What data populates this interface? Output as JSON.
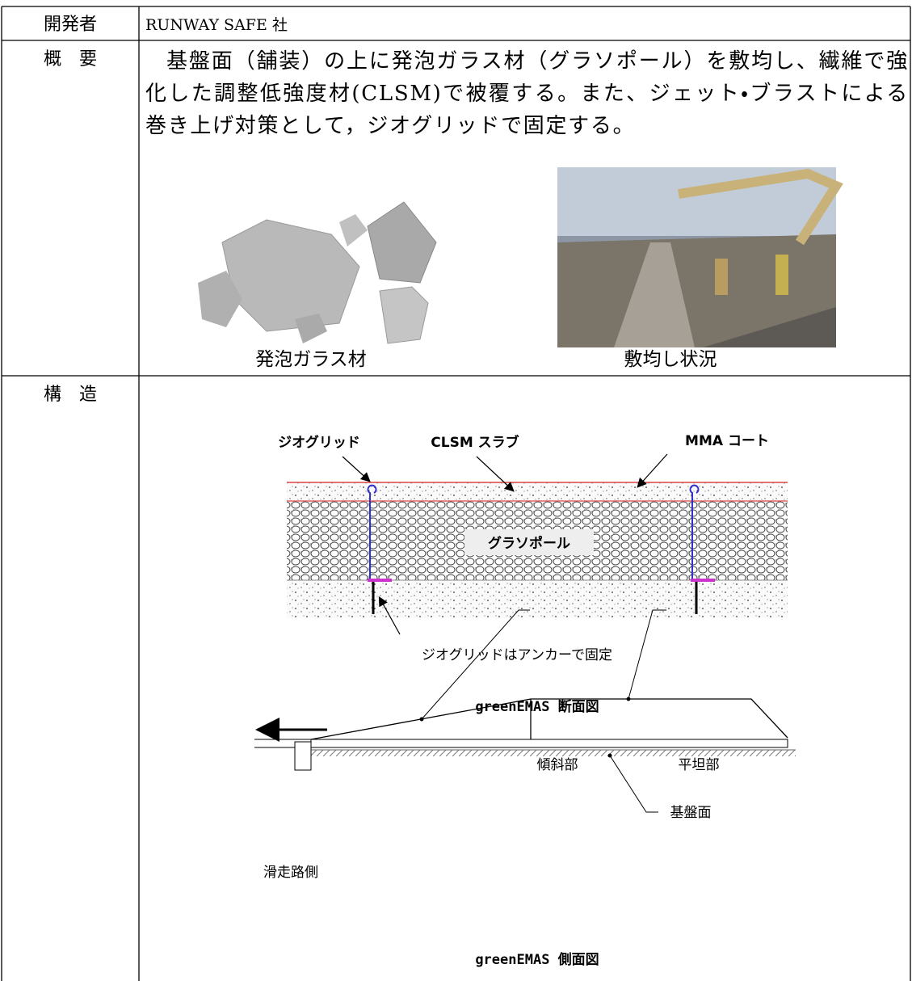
{
  "table": {
    "rows": [
      {
        "label": "開発者",
        "text": "RUNWAY SAFE 社"
      },
      {
        "label": "概　要",
        "text": "基盤面（舗装）の上に発泡ガラス材（グラソポール）を敷均し、繊維で強化した調整低強度材(CLSM)で被覆する。また、ジェット・ブラストによる巻き上げ対策として，ジオグリッドで固定する。",
        "figures": [
          {
            "caption": "発泡ガラス材"
          },
          {
            "caption": "敷均し状況"
          }
        ]
      },
      {
        "label": "構　造",
        "diagrams": [
          {
            "callouts": [
              "ジオグリッド",
              "CLSM スラブ",
              "MMA コート",
              "グラソポール",
              "ジオグリッドはアンカーで固定"
            ],
            "caption": "greenEMAS 断面図"
          },
          {
            "callouts": [
              "傾斜部",
              "平坦部",
              "滑走路側",
              "基盤面"
            ],
            "caption": "greenEMAS 側面図"
          }
        ]
      }
    ]
  }
}
